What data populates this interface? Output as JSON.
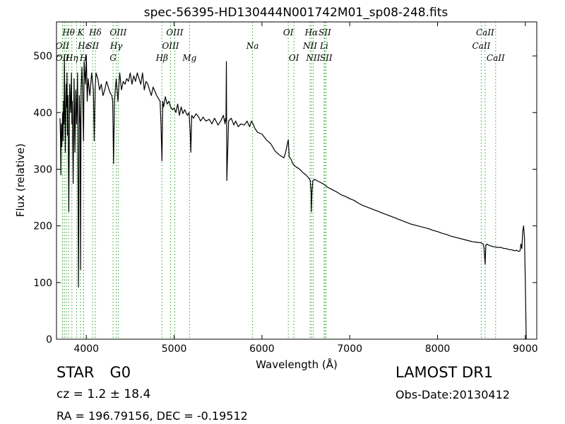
{
  "chart_data": {
    "type": "line",
    "title": "spec-56395-HD130444N001742M01_sp08-248.fits",
    "xlabel": "Wavelength (Å)",
    "ylabel": "Flux (relative)",
    "xlim": [
      3660,
      9130
    ],
    "ylim": [
      0,
      560
    ],
    "xticks": [
      4000,
      5000,
      6000,
      7000,
      8000,
      9000
    ],
    "yticks": [
      0,
      100,
      200,
      300,
      400,
      500
    ],
    "grid": false,
    "series": [
      {
        "color": "#000000",
        "x": [
          3700,
          3705,
          3710,
          3715,
          3720,
          3725,
          3730,
          3735,
          3740,
          3745,
          3750,
          3760,
          3770,
          3775,
          3780,
          3785,
          3790,
          3800,
          3810,
          3820,
          3830,
          3835,
          3840,
          3850,
          3860,
          3870,
          3880,
          3889,
          3900,
          3910,
          3920,
          3930,
          3934,
          3940,
          3950,
          3960,
          3968,
          3975,
          3990,
          4000,
          4010,
          4020,
          4040,
          4060,
          4080,
          4090,
          4101,
          4110,
          4130,
          4150,
          4170,
          4190,
          4210,
          4230,
          4250,
          4270,
          4290,
          4300,
          4310,
          4320,
          4340,
          4360,
          4380,
          4400,
          4420,
          4440,
          4460,
          4480,
          4500,
          4520,
          4540,
          4560,
          4580,
          4600,
          4620,
          4640,
          4660,
          4680,
          4700,
          4720,
          4740,
          4760,
          4780,
          4800,
          4820,
          4840,
          4850,
          4861,
          4870,
          4880,
          4900,
          4920,
          4940,
          4960,
          4980,
          5000,
          5020,
          5040,
          5060,
          5080,
          5100,
          5120,
          5150,
          5170,
          5175,
          5183,
          5190,
          5200,
          5220,
          5250,
          5280,
          5300,
          5330,
          5360,
          5400,
          5430,
          5460,
          5500,
          5530,
          5560,
          5580,
          5585,
          5590,
          5595,
          5600,
          5620,
          5650,
          5680,
          5700,
          5730,
          5760,
          5800,
          5830,
          5860,
          5880,
          5890,
          5900,
          5920,
          5950,
          6000,
          6050,
          6100,
          6150,
          6200,
          6250,
          6270,
          6290,
          6300,
          6310,
          6330,
          6350,
          6380,
          6400,
          6430,
          6460,
          6500,
          6530,
          6550,
          6560,
          6563,
          6570,
          6580,
          6600,
          6650,
          6700,
          6750,
          6800,
          6850,
          6900,
          6950,
          7000,
          7050,
          7100,
          7150,
          7200,
          7250,
          7300,
          7350,
          7400,
          7450,
          7500,
          7550,
          7600,
          7650,
          7700,
          7750,
          7800,
          7850,
          7900,
          7950,
          8000,
          8050,
          8100,
          8150,
          8200,
          8250,
          8300,
          8350,
          8400,
          8450,
          8500,
          8520,
          8530,
          8542,
          8550,
          8560,
          8580,
          8600,
          8620,
          8640,
          8662,
          8680,
          8700,
          8720,
          8740,
          8760,
          8780,
          8800,
          8820,
          8840,
          8860,
          8880,
          8900,
          8920,
          8940,
          8950,
          8960,
          8970,
          8980,
          8990,
          9000,
          9010
        ],
        "y": [
          390,
          360,
          290,
          380,
          340,
          370,
          400,
          350,
          420,
          380,
          500,
          330,
          450,
          410,
          470,
          360,
          430,
          225,
          450,
          400,
          470,
          380,
          420,
          275,
          460,
          330,
          440,
          380,
          470,
          92,
          430,
          380,
          123,
          440,
          480,
          420,
          350,
          490,
          450,
          500,
          420,
          460,
          430,
          470,
          440,
          350,
          445,
          470,
          460,
          440,
          450,
          430,
          440,
          455,
          445,
          435,
          430,
          420,
          310,
          420,
          460,
          420,
          470,
          440,
          455,
          450,
          460,
          455,
          470,
          450,
          465,
          455,
          470,
          460,
          450,
          470,
          440,
          455,
          450,
          440,
          430,
          445,
          438,
          430,
          425,
          420,
          380,
          315,
          420,
          410,
          428,
          415,
          420,
          410,
          405,
          408,
          400,
          415,
          395,
          410,
          398,
          405,
          395,
          400,
          385,
          365,
          330,
          395,
          390,
          398,
          392,
          385,
          392,
          385,
          388,
          380,
          390,
          378,
          385,
          395,
          380,
          390,
          385,
          490,
          280,
          385,
          390,
          378,
          385,
          375,
          380,
          378,
          385,
          375,
          385,
          382,
          380,
          372,
          365,
          362,
          352,
          345,
          332,
          325,
          320,
          330,
          345,
          352,
          322,
          318,
          310,
          305,
          303,
          300,
          295,
          290,
          285,
          280,
          260,
          225,
          260,
          280,
          282,
          278,
          274,
          268,
          264,
          260,
          255,
          252,
          248,
          245,
          240,
          236,
          233,
          230,
          227,
          224,
          221,
          218,
          215,
          212,
          209,
          206,
          203,
          201,
          199,
          197,
          195,
          192,
          190,
          187,
          185,
          182,
          180,
          178,
          176,
          174,
          172,
          171,
          170,
          168,
          160,
          132,
          165,
          168,
          166,
          165,
          164,
          163,
          163,
          162,
          162,
          162,
          161,
          160,
          160,
          159,
          158,
          158,
          157,
          156,
          157,
          155,
          156,
          168,
          160,
          190,
          200,
          180,
          100,
          0
        ]
      }
    ],
    "lines": [
      {
        "label": "Hθ",
        "x": 3798,
        "row": 1,
        "color": "#2ca02c"
      },
      {
        "label": "K",
        "x": 3934,
        "row": 1,
        "color": "#2ca02c"
      },
      {
        "label": "Hδ",
        "x": 4102,
        "row": 1,
        "color": "#2ca02c"
      },
      {
        "label": "OIII",
        "x": 4363,
        "row": 1,
        "color": "#2ca02c"
      },
      {
        "label": "OIII",
        "x": 5007,
        "row": 1,
        "color": "#2ca02c"
      },
      {
        "label": "OI",
        "x": 6300,
        "row": 1,
        "color": "#2ca02c"
      },
      {
        "label": "Hα",
        "x": 6563,
        "row": 1,
        "color": "#2ca02c"
      },
      {
        "label": "SII",
        "x": 6716,
        "row": 1,
        "color": "#2ca02c"
      },
      {
        "label": "CaII",
        "x": 8542,
        "row": 1,
        "color": "#2ca02c"
      },
      {
        "label": "OII",
        "x": 3727,
        "row": 2,
        "color": "#2ca02c"
      },
      {
        "label": "Hε",
        "x": 3970,
        "row": 2,
        "color": "#2ca02c"
      },
      {
        "label": "SII",
        "x": 4072,
        "row": 2,
        "color": "#2ca02c"
      },
      {
        "label": "Hγ",
        "x": 4341,
        "row": 2,
        "color": "#2ca02c"
      },
      {
        "label": "OIII",
        "x": 4959,
        "row": 2,
        "color": "#2ca02c"
      },
      {
        "label": "Na",
        "x": 5893,
        "row": 2,
        "color": "#2ca02c"
      },
      {
        "label": "NII",
        "x": 6548,
        "row": 2,
        "color": "#2ca02c"
      },
      {
        "label": "Li",
        "x": 6708,
        "row": 2,
        "color": "#2ca02c"
      },
      {
        "label": "CaII",
        "x": 8498,
        "row": 2,
        "color": "#2ca02c"
      },
      {
        "label": "OII",
        "x": 3729,
        "row": 3,
        "color": "#2ca02c"
      },
      {
        "label": "Hη",
        "x": 3835,
        "row": 3,
        "color": "#2ca02c"
      },
      {
        "label": "H",
        "x": 3968,
        "row": 3,
        "color": "#2ca02c"
      },
      {
        "label": "G",
        "x": 4304,
        "row": 3,
        "color": "#2ca02c"
      },
      {
        "label": "Hβ",
        "x": 4861,
        "row": 3,
        "color": "#2ca02c"
      },
      {
        "label": "Mg",
        "x": 5175,
        "row": 3,
        "color": "#2ca02c"
      },
      {
        "label": "OI",
        "x": 6364,
        "row": 3,
        "color": "#2ca02c"
      },
      {
        "label": "NII",
        "x": 6583,
        "row": 3,
        "color": "#2ca02c"
      },
      {
        "label": "SII",
        "x": 6731,
        "row": 3,
        "color": "#2ca02c"
      },
      {
        "label": "CaII",
        "x": 8662,
        "row": 3,
        "color": "#2ca02c"
      },
      {
        "label": "",
        "x": 3750,
        "row": 0,
        "color": "#2ca02c"
      },
      {
        "label": "",
        "x": 3771,
        "row": 0,
        "color": "#2ca02c"
      },
      {
        "label": "",
        "x": 3889,
        "row": 0,
        "color": "#2ca02c"
      }
    ]
  },
  "info": {
    "class": "STAR",
    "subclass": "G0",
    "cz": "cz = 1.2 ± 18.4",
    "coords": "RA = 196.79156, DEC = -0.19512",
    "survey": "LAMOST DR1",
    "obs_date": "Obs-Date:20130412"
  }
}
